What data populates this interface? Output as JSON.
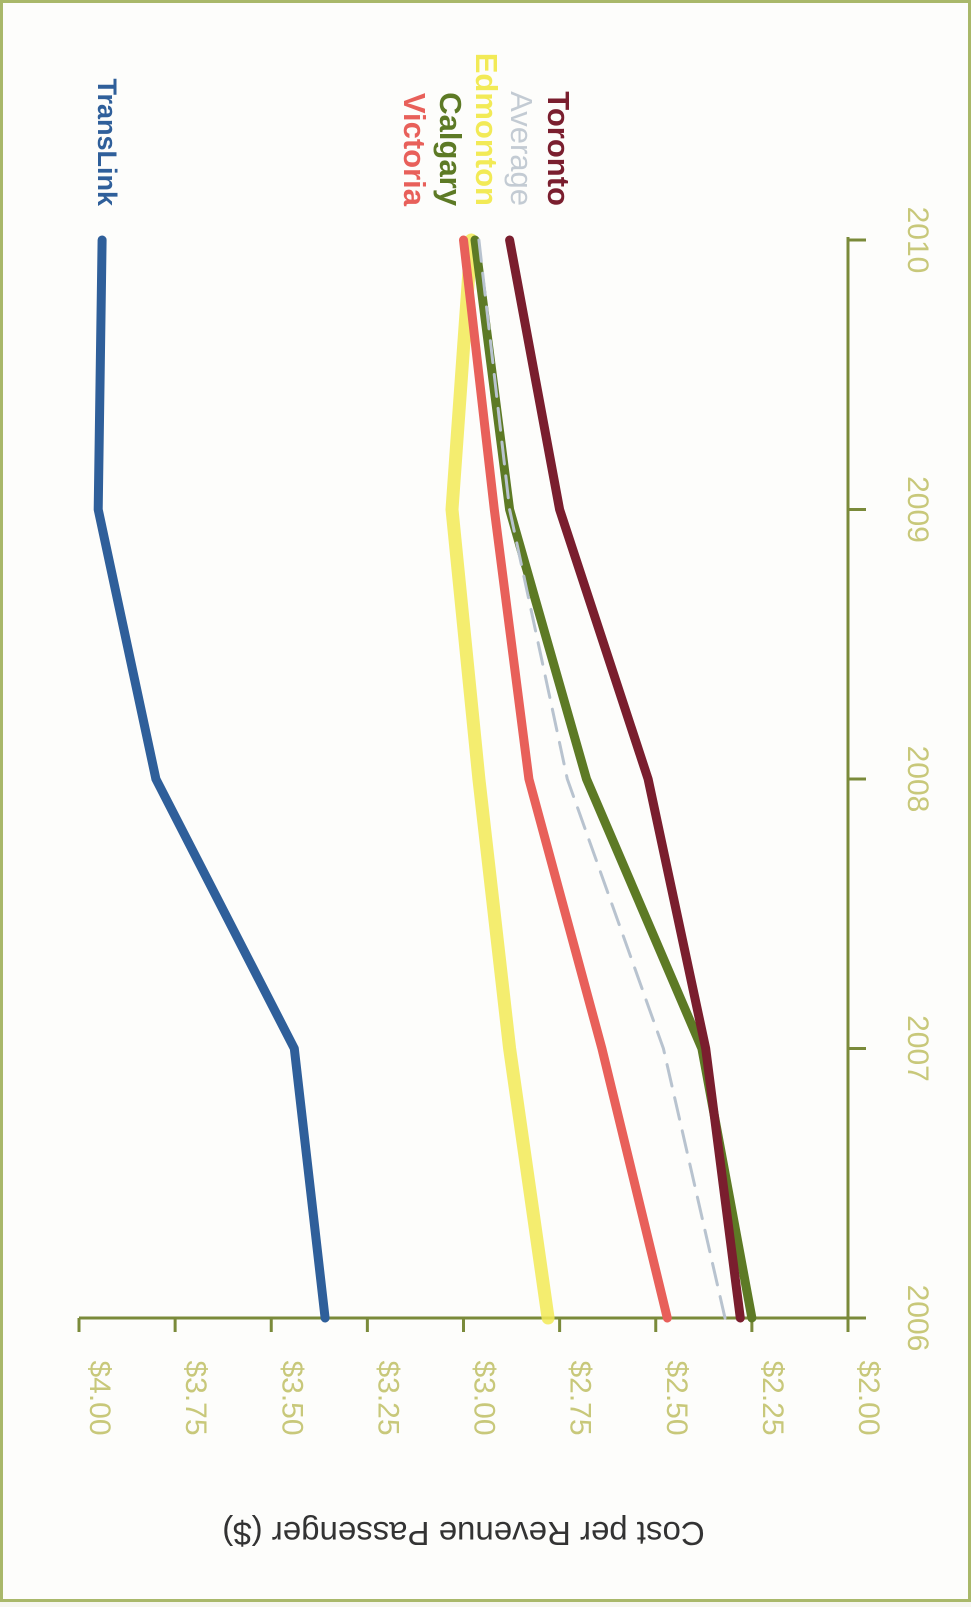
{
  "chart_data": {
    "type": "line",
    "orientation": "rotated-90-clockwise",
    "title": "",
    "xlabel": "",
    "ylabel": "Cost per Revenue Passenger ($)",
    "x": [
      2006,
      2007,
      2008,
      2009,
      2010
    ],
    "x_tick_labels": [
      "2006",
      "2007",
      "2008",
      "2009",
      "2010"
    ],
    "ylim": [
      2.0,
      4.0
    ],
    "y_ticks": [
      2.0,
      2.25,
      2.5,
      2.75,
      3.0,
      3.25,
      3.5,
      3.75,
      4.0
    ],
    "y_tick_labels": [
      "$2.00",
      "$2.25",
      "$2.50",
      "$2.75",
      "$3.00",
      "$3.25",
      "$3.50",
      "$3.75",
      "$4.00"
    ],
    "grid": false,
    "legend": "direct labels at line ends",
    "colors": {
      "axis": "#7a8a3a",
      "tick_text": "#c8c87a",
      "border": "#a9b86a",
      "ylabel": "#333333"
    },
    "series": [
      {
        "name": "TransLink",
        "color": "#2f5f9a",
        "dashed": false,
        "width": 9,
        "values": [
          3.36,
          3.44,
          3.8,
          3.95,
          3.94
        ]
      },
      {
        "name": "Victoria",
        "color": "#e8605a",
        "dashed": false,
        "width": 9,
        "values": [
          2.47,
          2.64,
          2.83,
          2.92,
          3.0
        ]
      },
      {
        "name": "Calgary",
        "color": "#5d7a25",
        "dashed": false,
        "width": 9,
        "values": [
          2.25,
          2.38,
          2.68,
          2.88,
          2.97
        ]
      },
      {
        "name": "Edmonton",
        "color": "#f2ea56",
        "dashed": false,
        "width": 13,
        "values": [
          2.78,
          2.88,
          2.96,
          3.03,
          2.98
        ]
      },
      {
        "name": "Average",
        "color": "#b8c3cf",
        "dashed": true,
        "width": 3,
        "values": [
          2.32,
          2.48,
          2.73,
          2.88,
          2.96
        ]
      },
      {
        "name": "Toronto",
        "color": "#7a1e2e",
        "dashed": false,
        "width": 9,
        "values": [
          2.28,
          2.37,
          2.52,
          2.75,
          2.88
        ]
      }
    ]
  }
}
